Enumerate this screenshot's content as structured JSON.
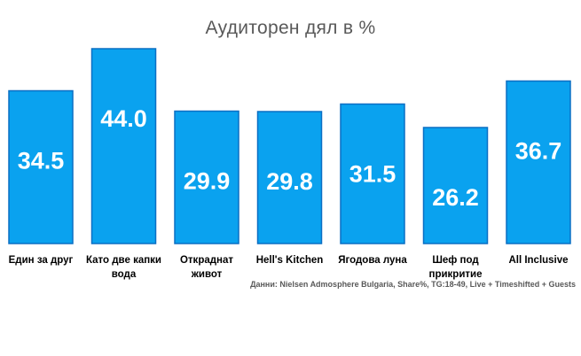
{
  "chart_data": {
    "type": "bar",
    "title": "Аудиторен дял в %",
    "xlabel": "",
    "ylabel": "",
    "ylim": [
      0,
      50
    ],
    "grid": false,
    "legend": "none",
    "categories": [
      [
        "Един за друг"
      ],
      [
        "Като две капки",
        "вода"
      ],
      [
        "Откраднат",
        "живот"
      ],
      [
        "Hell's Kitchen"
      ],
      [
        "Ягодова  луна"
      ],
      [
        "Шеф под",
        "прикритие"
      ],
      [
        "All Inclusive"
      ]
    ],
    "series": [
      {
        "values": [
          34.5,
          44.0,
          29.9,
          29.8,
          31.5,
          26.2,
          36.7
        ]
      }
    ],
    "data_labels": [
      "34.5",
      "44.0",
      "29.9",
      "29.8",
      "31.5",
      "26.2",
      "36.7"
    ],
    "colors": {
      "bar": "#0AA2EF",
      "bar_edge": "#0A6FC4",
      "label_text": "#FFFFFF",
      "axis_text": "#000000"
    }
  },
  "source_note": "Данни: Nielsen Admosphere Bulgaria, Share%, TG:18-49, Live + Timeshifted + Guests"
}
